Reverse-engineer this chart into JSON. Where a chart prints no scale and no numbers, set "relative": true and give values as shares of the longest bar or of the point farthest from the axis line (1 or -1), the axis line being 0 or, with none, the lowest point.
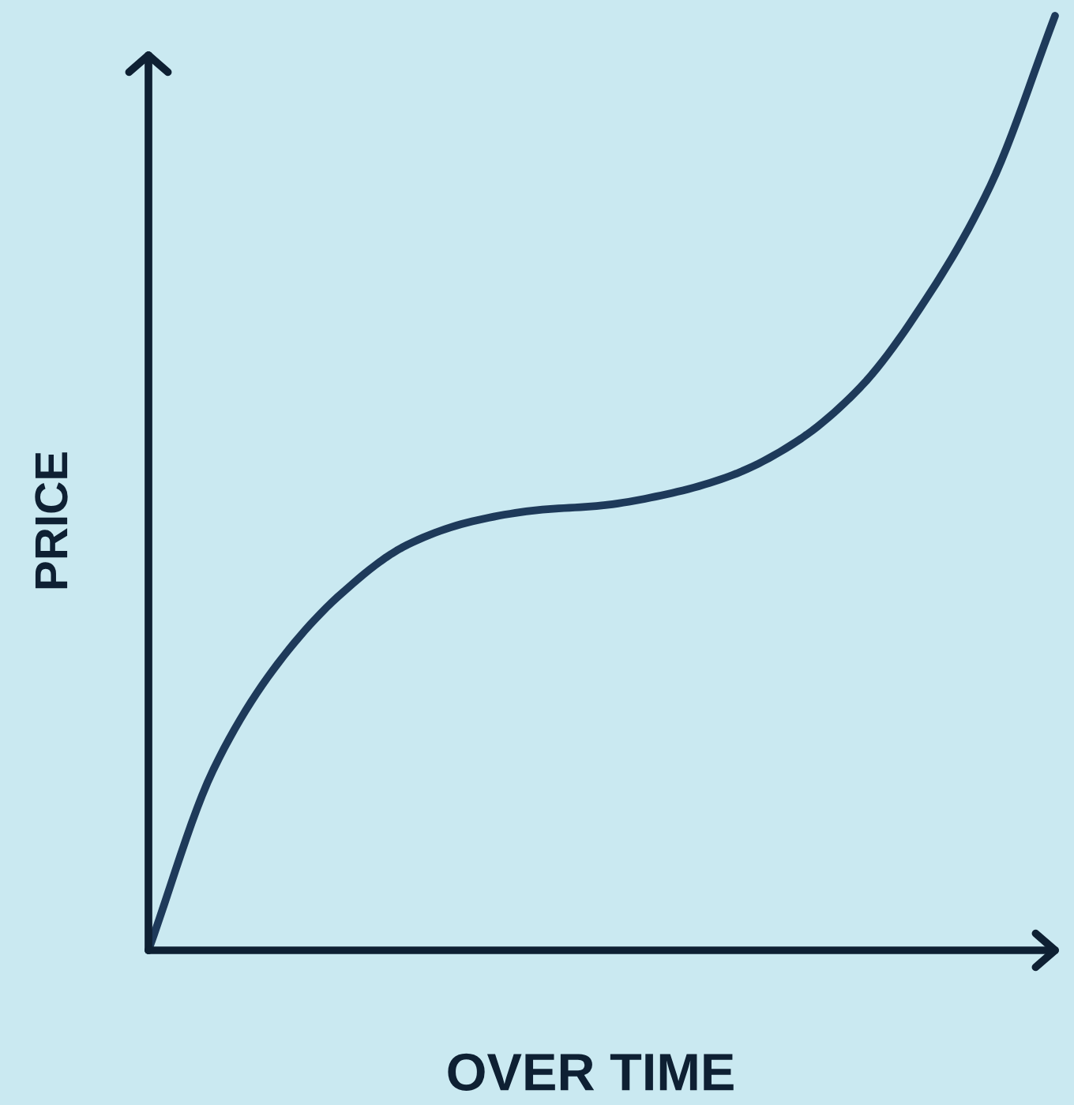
{
  "chart_data": {
    "type": "line",
    "xlabel": "OVER TIME",
    "ylabel": "PRICE",
    "relative": true,
    "categories": [
      null,
      null,
      null,
      null,
      null,
      null,
      null,
      null,
      null,
      null,
      null,
      null,
      null,
      null,
      null
    ],
    "series": [
      {
        "color": "#1e3a5a",
        "values": [
          0,
          0.193,
          0.307,
          0.383,
          0.434,
          0.459,
          0.471,
          0.476,
          0.488,
          0.508,
          0.544,
          0.603,
          0.696,
          0.818,
          1
        ]
      }
    ],
    "line_style": "solid",
    "marker": "none",
    "grid": false,
    "legend": false
  }
}
